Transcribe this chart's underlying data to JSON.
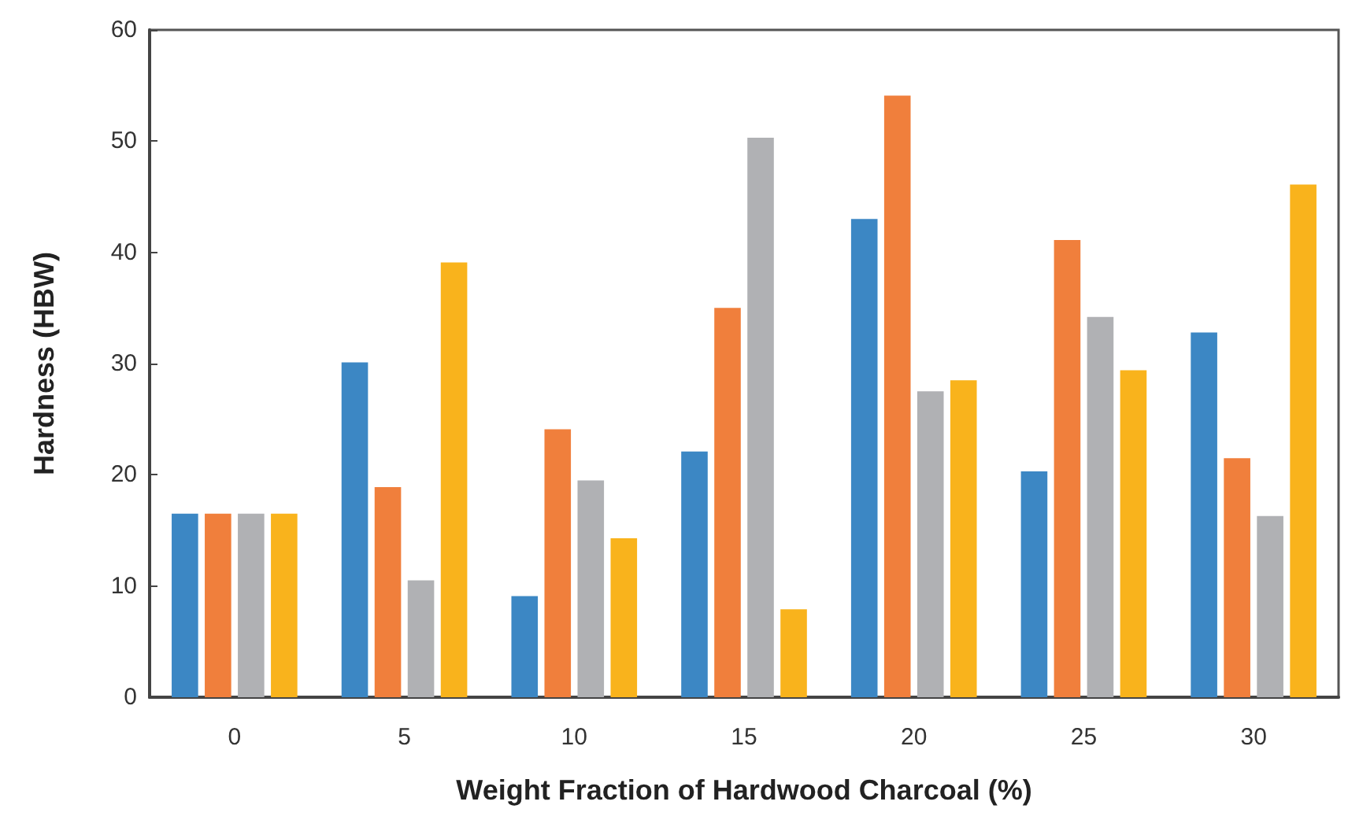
{
  "chart_data": {
    "type": "bar",
    "xlabel": "Weight Fraction of Hardwood Charcoal (%)",
    "ylabel": "Hardness (HBW)",
    "categories": [
      "0",
      "5",
      "10",
      "15",
      "20",
      "25",
      "30"
    ],
    "series": [
      {
        "color": "#3c87c4",
        "values": [
          16.5,
          30.1,
          9.1,
          22.1,
          43.0,
          20.3,
          32.8
        ]
      },
      {
        "color": "#f07f3c",
        "values": [
          16.5,
          18.9,
          24.1,
          35.0,
          54.1,
          41.1,
          21.5
        ]
      },
      {
        "color": "#b0b1b4",
        "values": [
          16.5,
          10.5,
          19.5,
          50.3,
          27.5,
          34.2,
          16.3
        ]
      },
      {
        "color": "#f9b31c",
        "values": [
          16.5,
          39.1,
          14.3,
          7.9,
          28.5,
          29.4,
          46.1
        ]
      }
    ],
    "ylim": [
      0,
      60
    ],
    "yticks": [
      0,
      10,
      20,
      30,
      40,
      50,
      60
    ]
  }
}
